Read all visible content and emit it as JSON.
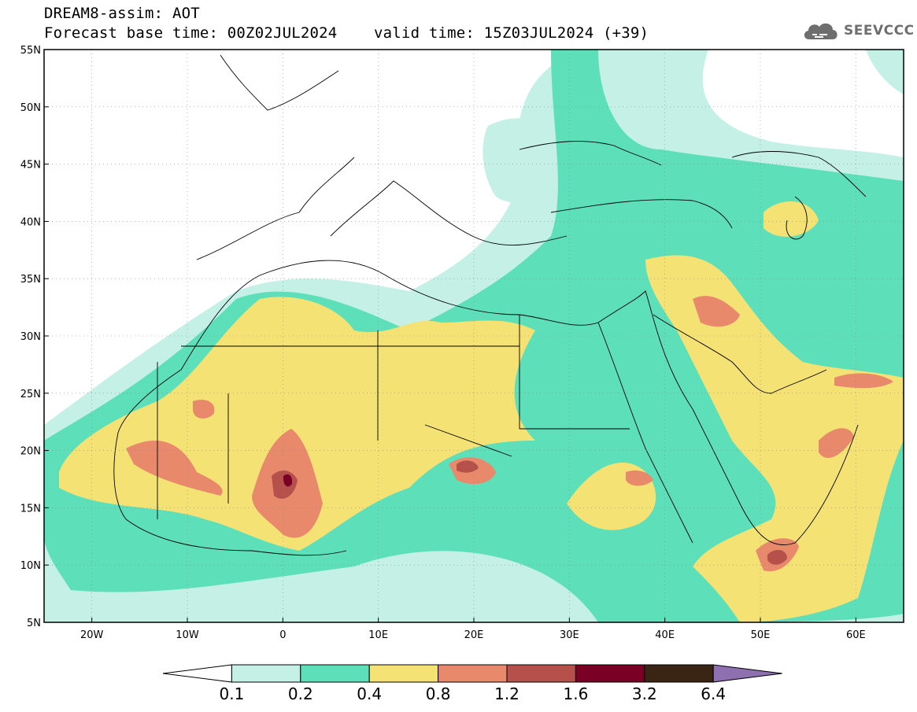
{
  "header": {
    "line1": "DREAM8-assim: AOT",
    "base_label": "Forecast base time: 00Z02JUL2024",
    "valid_label": "valid time: 15Z03JUL2024 (+39)"
  },
  "logo": {
    "text": "SEEVCCC",
    "icon": "cloud-icon"
  },
  "map": {
    "lat_ticks": [
      "55N",
      "50N",
      "45N",
      "40N",
      "35N",
      "30N",
      "25N",
      "20N",
      "15N",
      "10N",
      "5N"
    ],
    "lon_ticks": [
      "20W",
      "10W",
      "0",
      "10E",
      "20E",
      "30E",
      "40E",
      "50E",
      "60E"
    ],
    "lon_range": [
      -25,
      65
    ],
    "lat_range": [
      5,
      55
    ],
    "grid": true
  },
  "colorbar": {
    "labels": [
      "0.1",
      "0.2",
      "0.4",
      "0.8",
      "1.2",
      "1.6",
      "3.2",
      "6.4"
    ],
    "colors": [
      "#ffffff",
      "#c4f0e6",
      "#5ddfb9",
      "#f5e275",
      "#e8896b",
      "#b5514a",
      "#7a0026",
      "#3a2414",
      "#8e6fb0"
    ]
  },
  "palette": {
    "c1": "#c4f0e6",
    "c2": "#5ddfb9",
    "c3": "#f5e275",
    "c4": "#e8896b",
    "c5": "#b5514a",
    "c6": "#7a0026"
  }
}
